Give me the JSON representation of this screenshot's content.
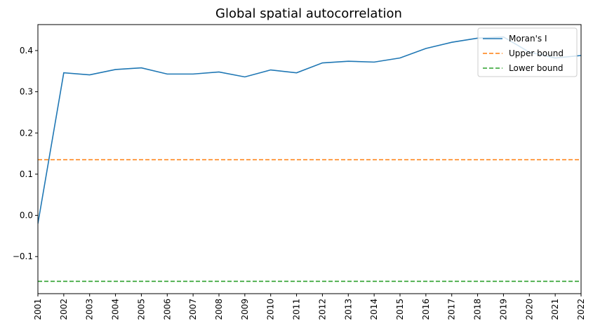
{
  "chart_data": {
    "type": "line",
    "title": "Global spatial autocorrelation",
    "xlabel": "",
    "ylabel": "",
    "x": [
      "2001",
      "2002",
      "2003",
      "2004",
      "2005",
      "2006",
      "2007",
      "2008",
      "2009",
      "2010",
      "2011",
      "2012",
      "2013",
      "2014",
      "2015",
      "2016",
      "2017",
      "2018",
      "2019",
      "2020",
      "2021",
      "2022"
    ],
    "xlim": [
      "2001",
      "2022"
    ],
    "ylim": [
      -0.19,
      0.463
    ],
    "yticks": [
      -0.1,
      0.0,
      0.1,
      0.2,
      0.3,
      0.4
    ],
    "ytick_labels": [
      "−0.1",
      "0.0",
      "0.1",
      "0.2",
      "0.3",
      "0.4"
    ],
    "grid": false,
    "legend_position": "top-right",
    "series": [
      {
        "name": "Moran's I",
        "style": "solid",
        "color": "#1f77b4",
        "values": [
          -0.02,
          0.346,
          0.341,
          0.354,
          0.358,
          0.343,
          0.343,
          0.348,
          0.336,
          0.353,
          0.346,
          0.37,
          0.374,
          0.372,
          0.382,
          0.405,
          0.42,
          0.43,
          0.433,
          0.396,
          0.382,
          0.388
        ]
      },
      {
        "name": "Upper bound",
        "style": "dashed",
        "color": "#ff7f0e",
        "constant": 0.135
      },
      {
        "name": "Lower bound",
        "style": "dashed",
        "color": "#2ca02c",
        "constant": -0.16
      }
    ]
  }
}
